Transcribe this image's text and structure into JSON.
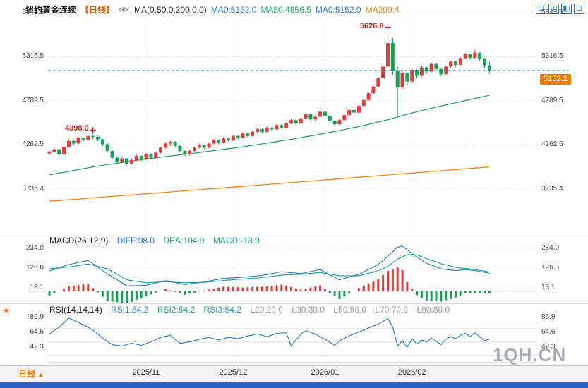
{
  "header": {
    "title": "纽约黄金连续",
    "period": "【日线】",
    "formula": "MA(0,50,0,200,0,0)",
    "ma0a": "MA0:5152.0",
    "ma50": "MA50:4856.5",
    "ma0b": "MA0:5152.0",
    "ma200": "MA200:4"
  },
  "toolbar_icons": [
    {
      "name": "layout-quad-icon",
      "glyph": "⊞"
    },
    {
      "name": "layout-vertical-split-icon",
      "glyph": "◫"
    },
    {
      "name": "layout-left-split-icon",
      "glyph": "◧"
    },
    {
      "name": "layout-horizontal-split-icon",
      "glyph": "⊟"
    }
  ],
  "macd_header": {
    "name": "MACD(26,12,9)",
    "diff": "DIFF:98.0",
    "dea": "DEA:104.9",
    "macd": "MACD:-13.9"
  },
  "rsi_header": {
    "name": "RSI(14,14,14)",
    "rsi1": "RSI1:54.2",
    "rsi2": "RSI2:54.2",
    "rsi3": "RSI3:54.2",
    "l20": "L20:20.0",
    "l30": "L30:30.0",
    "l50": "L50:50.0",
    "l70": "L70:70.0",
    "l80": "L80:80.0"
  },
  "price_badge": "5152.2",
  "bottom": {
    "period_tab": "日线",
    "tab_arrow": "▲"
  },
  "watermark": "1QH.CN",
  "chart_data": {
    "type": "candlestick",
    "title": "纽约黄金连续 日线",
    "panels": [
      "price",
      "MACD",
      "RSI"
    ],
    "y_axis_price": [
      5843.5,
      5316.5,
      4789.5,
      4262.5,
      3735.4
    ],
    "y_axis_macd": [
      234.0,
      126.0,
      18.1
    ],
    "y_axis_rsi": [
      86.9,
      64.6,
      42.3
    ],
    "x_ticks": [
      {
        "index": 20,
        "label": "2025/11"
      },
      {
        "index": 38,
        "label": "2025/12"
      },
      {
        "index": 57,
        "label": "2026/01"
      },
      {
        "index": 75,
        "label": "2026/02"
      }
    ],
    "price_line": 5152.2,
    "annotations": [
      {
        "label": "4398.0",
        "index": 9,
        "price": 4398.0
      },
      {
        "label": "5626.8",
        "index": 70,
        "price": 5626.8
      }
    ],
    "rsi_levels": [
      20,
      30,
      50,
      70,
      80
    ],
    "colors": {
      "up": "#e23b3b",
      "down": "#16a05a",
      "ma50": "#2e9e68",
      "ma200": "#f0851e",
      "diff": "#2878c8",
      "dea": "#18a08c",
      "rsi": "#2878c8",
      "price_line": "#0a8f8f",
      "badge": "#f07800"
    },
    "candles": [
      [
        4160,
        4200,
        4140,
        4180
      ],
      [
        4180,
        4230,
        4170,
        4210
      ],
      [
        4210,
        4220,
        4120,
        4150
      ],
      [
        4150,
        4255,
        4140,
        4240
      ],
      [
        4240,
        4330,
        4230,
        4310
      ],
      [
        4310,
        4325,
        4260,
        4280
      ],
      [
        4280,
        4365,
        4270,
        4350
      ],
      [
        4350,
        4360,
        4300,
        4320
      ],
      [
        4320,
        4385,
        4310,
        4370
      ],
      [
        4370,
        4398,
        4330,
        4360
      ],
      [
        4360,
        4375,
        4310,
        4330
      ],
      [
        4330,
        4340,
        4250,
        4270
      ],
      [
        4270,
        4285,
        4170,
        4190
      ],
      [
        4190,
        4200,
        4090,
        4110
      ],
      [
        4110,
        4130,
        4030,
        4060
      ],
      [
        4060,
        4120,
        4050,
        4100
      ],
      [
        4100,
        4110,
        4020,
        4040
      ],
      [
        4040,
        4100,
        4030,
        4080
      ],
      [
        4080,
        4150,
        4070,
        4130
      ],
      [
        4130,
        4140,
        4070,
        4090
      ],
      [
        4090,
        4165,
        4080,
        4150
      ],
      [
        4150,
        4160,
        4090,
        4110
      ],
      [
        4110,
        4185,
        4100,
        4170
      ],
      [
        4170,
        4245,
        4160,
        4230
      ],
      [
        4230,
        4295,
        4220,
        4280
      ],
      [
        4280,
        4315,
        4250,
        4300
      ],
      [
        4300,
        4310,
        4230,
        4250
      ],
      [
        4250,
        4260,
        4170,
        4190
      ],
      [
        4190,
        4200,
        4130,
        4150
      ],
      [
        4150,
        4205,
        4140,
        4190
      ],
      [
        4190,
        4245,
        4180,
        4230
      ],
      [
        4230,
        4275,
        4220,
        4260
      ],
      [
        4260,
        4270,
        4210,
        4230
      ],
      [
        4230,
        4295,
        4220,
        4280
      ],
      [
        4280,
        4335,
        4270,
        4320
      ],
      [
        4320,
        4330,
        4270,
        4290
      ],
      [
        4290,
        4355,
        4280,
        4340
      ],
      [
        4340,
        4350,
        4300,
        4320
      ],
      [
        4320,
        4385,
        4310,
        4370
      ],
      [
        4370,
        4380,
        4330,
        4350
      ],
      [
        4350,
        4415,
        4340,
        4400
      ],
      [
        4400,
        4410,
        4350,
        4370
      ],
      [
        4370,
        4435,
        4360,
        4420
      ],
      [
        4420,
        4465,
        4410,
        4450
      ],
      [
        4450,
        4460,
        4400,
        4420
      ],
      [
        4420,
        4485,
        4410,
        4470
      ],
      [
        4470,
        4480,
        4430,
        4450
      ],
      [
        4450,
        4515,
        4440,
        4500
      ],
      [
        4500,
        4510,
        4450,
        4470
      ],
      [
        4470,
        4535,
        4460,
        4520
      ],
      [
        4520,
        4575,
        4510,
        4560
      ],
      [
        4560,
        4570,
        4500,
        4520
      ],
      [
        4520,
        4595,
        4510,
        4580
      ],
      [
        4580,
        4645,
        4570,
        4630
      ],
      [
        4630,
        4640,
        4550,
        4570
      ],
      [
        4570,
        4615,
        4550,
        4600
      ],
      [
        4600,
        4700,
        4590,
        4660
      ],
      [
        4660,
        4670,
        4590,
        4610
      ],
      [
        4610,
        4620,
        4530,
        4550
      ],
      [
        4550,
        4560,
        4490,
        4510
      ],
      [
        4510,
        4575,
        4500,
        4560
      ],
      [
        4560,
        4635,
        4550,
        4620
      ],
      [
        4620,
        4695,
        4610,
        4680
      ],
      [
        4680,
        4690,
        4630,
        4650
      ],
      [
        4650,
        4745,
        4640,
        4730
      ],
      [
        4730,
        4815,
        4720,
        4800
      ],
      [
        4800,
        4895,
        4790,
        4880
      ],
      [
        4880,
        4975,
        4870,
        4960
      ],
      [
        4960,
        5075,
        4950,
        5060
      ],
      [
        5060,
        5215,
        5050,
        5200
      ],
      [
        5200,
        5626.8,
        5190,
        5480
      ],
      [
        5480,
        5540,
        5100,
        5150
      ],
      [
        5150,
        5200,
        4620,
        4950
      ],
      [
        4950,
        5160,
        4930,
        5120
      ],
      [
        5120,
        5130,
        4980,
        5020
      ],
      [
        5020,
        5180,
        5010,
        5160
      ],
      [
        5160,
        5170,
        5060,
        5090
      ],
      [
        5090,
        5210,
        5080,
        5190
      ],
      [
        5190,
        5200,
        5110,
        5140
      ],
      [
        5140,
        5240,
        5130,
        5230
      ],
      [
        5230,
        5240,
        5140,
        5170
      ],
      [
        5170,
        5180,
        5080,
        5110
      ],
      [
        5110,
        5210,
        5100,
        5200
      ],
      [
        5200,
        5270,
        5190,
        5260
      ],
      [
        5260,
        5270,
        5190,
        5220
      ],
      [
        5220,
        5310,
        5210,
        5300
      ],
      [
        5300,
        5360,
        5290,
        5345
      ],
      [
        5345,
        5350,
        5280,
        5305
      ],
      [
        5305,
        5400,
        5295,
        5365
      ],
      [
        5365,
        5370,
        5270,
        5295
      ],
      [
        5295,
        5305,
        5180,
        5215
      ],
      [
        5215,
        5260,
        5110,
        5152.2
      ]
    ],
    "ma50_keypoints": [
      [
        0,
        3905
      ],
      [
        10,
        4010
      ],
      [
        20,
        4095
      ],
      [
        30,
        4165
      ],
      [
        40,
        4240
      ],
      [
        50,
        4330
      ],
      [
        55,
        4380
      ],
      [
        60,
        4435
      ],
      [
        65,
        4495
      ],
      [
        70,
        4565
      ],
      [
        75,
        4645
      ],
      [
        80,
        4715
      ],
      [
        85,
        4780
      ],
      [
        91,
        4856.5
      ]
    ],
    "ma200_keypoints": [
      [
        0,
        3590
      ],
      [
        45,
        3790
      ],
      [
        91,
        4000
      ]
    ],
    "macd": {
      "diff_keypoints": [
        [
          0,
          110
        ],
        [
          4,
          145
        ],
        [
          8,
          168
        ],
        [
          12,
          95
        ],
        [
          16,
          28
        ],
        [
          20,
          32
        ],
        [
          24,
          58
        ],
        [
          28,
          36
        ],
        [
          32,
          50
        ],
        [
          36,
          70
        ],
        [
          40,
          76
        ],
        [
          44,
          86
        ],
        [
          48,
          106
        ],
        [
          52,
          96
        ],
        [
          56,
          118
        ],
        [
          58,
          88
        ],
        [
          60,
          62
        ],
        [
          64,
          92
        ],
        [
          68,
          145
        ],
        [
          70,
          190
        ],
        [
          72,
          240
        ],
        [
          73,
          245
        ],
        [
          75,
          205
        ],
        [
          78,
          152
        ],
        [
          81,
          122
        ],
        [
          84,
          112
        ],
        [
          86,
          118
        ],
        [
          88,
          112
        ],
        [
          91,
          98
        ]
      ],
      "dea_keypoints": [
        [
          0,
          122
        ],
        [
          4,
          132
        ],
        [
          8,
          148
        ],
        [
          12,
          122
        ],
        [
          16,
          62
        ],
        [
          20,
          46
        ],
        [
          24,
          52
        ],
        [
          28,
          46
        ],
        [
          32,
          48
        ],
        [
          36,
          58
        ],
        [
          40,
          66
        ],
        [
          44,
          74
        ],
        [
          48,
          88
        ],
        [
          52,
          92
        ],
        [
          56,
          102
        ],
        [
          60,
          84
        ],
        [
          64,
          84
        ],
        [
          68,
          112
        ],
        [
          70,
          135
        ],
        [
          72,
          175
        ],
        [
          74,
          200
        ],
        [
          76,
          198
        ],
        [
          78,
          178
        ],
        [
          81,
          150
        ],
        [
          84,
          130
        ],
        [
          86,
          124
        ],
        [
          88,
          118
        ],
        [
          91,
          104.9
        ]
      ]
    },
    "rsi_keypoints": [
      [
        0,
        62
      ],
      [
        2,
        72
      ],
      [
        4,
        86
      ],
      [
        5,
        83
      ],
      [
        7,
        76
      ],
      [
        9,
        68
      ],
      [
        11,
        56
      ],
      [
        13,
        46
      ],
      [
        15,
        44
      ],
      [
        17,
        48
      ],
      [
        19,
        45
      ],
      [
        21,
        50
      ],
      [
        23,
        57
      ],
      [
        25,
        60
      ],
      [
        27,
        48
      ],
      [
        29,
        50
      ],
      [
        31,
        54
      ],
      [
        33,
        57
      ],
      [
        35,
        53
      ],
      [
        37,
        57
      ],
      [
        39,
        55
      ],
      [
        41,
        59
      ],
      [
        43,
        62
      ],
      [
        45,
        58
      ],
      [
        47,
        63
      ],
      [
        49,
        64
      ],
      [
        50,
        44
      ],
      [
        52,
        62
      ],
      [
        53,
        67
      ],
      [
        55,
        62
      ],
      [
        57,
        54
      ],
      [
        59,
        45
      ],
      [
        60,
        52
      ],
      [
        62,
        59
      ],
      [
        64,
        65
      ],
      [
        66,
        71
      ],
      [
        68,
        77
      ],
      [
        70,
        85
      ],
      [
        71,
        73
      ],
      [
        72,
        44
      ],
      [
        73,
        52
      ],
      [
        74,
        42
      ],
      [
        75,
        55
      ],
      [
        76,
        47
      ],
      [
        77,
        53
      ],
      [
        78,
        50
      ],
      [
        79,
        56
      ],
      [
        80,
        51
      ],
      [
        81,
        46
      ],
      [
        82,
        54
      ],
      [
        83,
        58
      ],
      [
        84,
        55
      ],
      [
        85,
        60
      ],
      [
        86,
        63
      ],
      [
        87,
        58
      ],
      [
        88,
        64
      ],
      [
        89,
        58
      ],
      [
        90,
        52
      ],
      [
        91,
        54.2
      ]
    ]
  }
}
